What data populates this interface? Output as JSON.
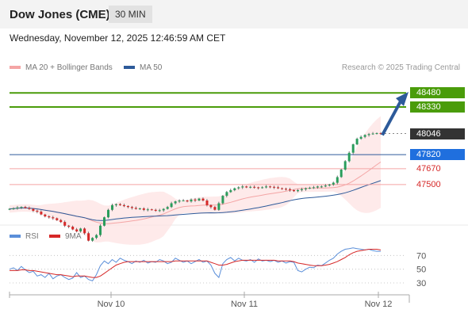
{
  "header": {
    "title": "Dow Jones (CME)",
    "interval": "30 MIN"
  },
  "datetime": "Wednesday, November 12, 2025 12:46:59 AM CET",
  "legend": {
    "ma20_label": "MA 20 + Bollinger Bands",
    "ma50_label": "MA 50",
    "credit": "Research © 2025 Trading Central"
  },
  "rsi_legend": {
    "rsi_label": "RSI",
    "ma_label": "9MA"
  },
  "colors": {
    "ma20": "#f4a5a5",
    "ma50": "#2d5a9a",
    "resistance": "#4a9c0a",
    "support_blue": "#2d5a9a",
    "support_red": "#f4a5a5",
    "arrow": "#2d5a9a",
    "up": "#2a9d5c",
    "down": "#d62828"
  },
  "chart_data": [
    {
      "type": "candlestick",
      "x_ticks": [
        "Nov 10",
        "Nov 11",
        "Nov 12"
      ],
      "ylim": [
        47050,
        48660
      ],
      "levels": [
        {
          "value": 48480,
          "label": "48480",
          "kind": "resistance"
        },
        {
          "value": 48330,
          "label": "48330",
          "kind": "resistance"
        },
        {
          "value": 48046,
          "label": "48046",
          "kind": "last"
        },
        {
          "value": 47820,
          "label": "47820",
          "kind": "support-blue"
        },
        {
          "value": 47670,
          "label": "47670",
          "kind": "support-red"
        },
        {
          "value": 47500,
          "label": "47500",
          "kind": "support-red"
        }
      ],
      "close_series": [
        47240,
        47245,
        47255,
        47260,
        47250,
        47240,
        47220,
        47210,
        47180,
        47160,
        47150,
        47140,
        47120,
        47100,
        47060,
        47050,
        47020,
        47000,
        47030,
        46980,
        46900,
        46930,
        46960,
        47060,
        47150,
        47230,
        47280,
        47290,
        47280,
        47270,
        47260,
        47250,
        47240,
        47245,
        47230,
        47235,
        47230,
        47220,
        47225,
        47240,
        47260,
        47300,
        47320,
        47330,
        47330,
        47320,
        47340,
        47330,
        47350,
        47330,
        47280,
        47260,
        47230,
        47300,
        47380,
        47420,
        47440,
        47460,
        47470,
        47480,
        47470,
        47475,
        47470,
        47465,
        47470,
        47480,
        47475,
        47470,
        47460,
        47455,
        47450,
        47440,
        47430,
        47440,
        47450,
        47460,
        47465,
        47470,
        47480,
        47480,
        47490,
        47500,
        47520,
        47580,
        47660,
        47750,
        47840,
        47930,
        47990,
        48010,
        48030,
        48040,
        48046,
        48050,
        48046
      ]
    },
    {
      "type": "line",
      "title": "RSI",
      "ylim": [
        15,
        90
      ],
      "y_ticks": [
        70,
        50,
        30
      ],
      "series": [
        {
          "name": "RSI",
          "values": [
            50,
            52,
            48,
            54,
            49,
            45,
            47,
            40,
            42,
            38,
            44,
            36,
            40,
            42,
            38,
            35,
            37,
            45,
            38,
            40,
            35,
            33,
            42,
            55,
            62,
            58,
            64,
            60,
            66,
            63,
            61,
            58,
            62,
            60,
            63,
            59,
            61,
            60,
            64,
            62,
            58,
            60,
            66,
            63,
            60,
            62,
            58,
            61,
            64,
            60,
            62,
            56,
            44,
            38,
            58,
            64,
            67,
            62,
            66,
            63,
            62,
            64,
            60,
            65,
            62,
            63,
            61,
            63,
            60,
            62,
            59,
            61,
            60,
            48,
            46,
            50,
            53,
            52,
            56,
            55,
            59,
            63,
            66,
            72,
            76,
            79,
            80,
            81,
            80,
            79,
            78,
            79,
            77,
            76,
            76
          ]
        },
        {
          "name": "9MA",
          "values": [
            48,
            48,
            48,
            49,
            49,
            48,
            48,
            47,
            46,
            45,
            44,
            43,
            42,
            42,
            41,
            40,
            39,
            40,
            40,
            40,
            39,
            38,
            38,
            40,
            44,
            48,
            52,
            56,
            58,
            60,
            61,
            61,
            61,
            61,
            61,
            61,
            61,
            61,
            61,
            61,
            61,
            61,
            62,
            62,
            62,
            62,
            62,
            62,
            62,
            62,
            62,
            60,
            58,
            56,
            56,
            57,
            59,
            61,
            62,
            63,
            63,
            63,
            63,
            63,
            63,
            63,
            63,
            63,
            62,
            62,
            62,
            62,
            61,
            59,
            58,
            57,
            56,
            55,
            55,
            55,
            56,
            57,
            59,
            61,
            64,
            67,
            71,
            74,
            76,
            77,
            78,
            79,
            79,
            79,
            78
          ]
        }
      ]
    }
  ]
}
